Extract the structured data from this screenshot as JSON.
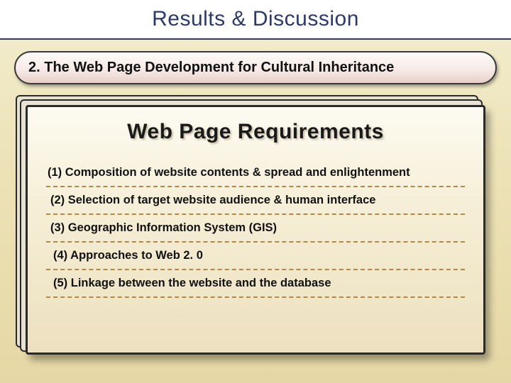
{
  "colors": {
    "page_bg_top": "#f3eecf",
    "page_bg_bottom": "#e6d8a5",
    "title_bar_bg": "#ffffff",
    "title_text": "#2b3a6c",
    "title_underline": "#2b3a6c",
    "pill_bg_top": "#fefaf8",
    "pill_bg_bottom": "#e8cfc8",
    "pill_border": "#3a3a3a",
    "panel_bg_top": "#fdfbf2",
    "panel_bg_bottom": "#ece0bf",
    "panel_border": "#2a2a2a",
    "dash_color": "#b08a42",
    "text": "#111111"
  },
  "typography": {
    "title_fontsize_pt": 22,
    "section_fontsize_pt": 15,
    "panel_title_fontsize_pt": 22,
    "item_fontsize_pt": 12,
    "font_family": "Arial"
  },
  "title": "Results & Discussion",
  "section": "2. The Web Page Development for Cultural Inheritance",
  "panel": {
    "heading": "Web Page Requirements",
    "items": [
      "(1) Composition of website contents & spread and enlightenment",
      "(2) Selection of target website audience & human interface",
      "(3) Geographic Information System (GIS)",
      "(4) Approaches to Web 2. 0",
      "(5) Linkage between the website and the database"
    ]
  }
}
